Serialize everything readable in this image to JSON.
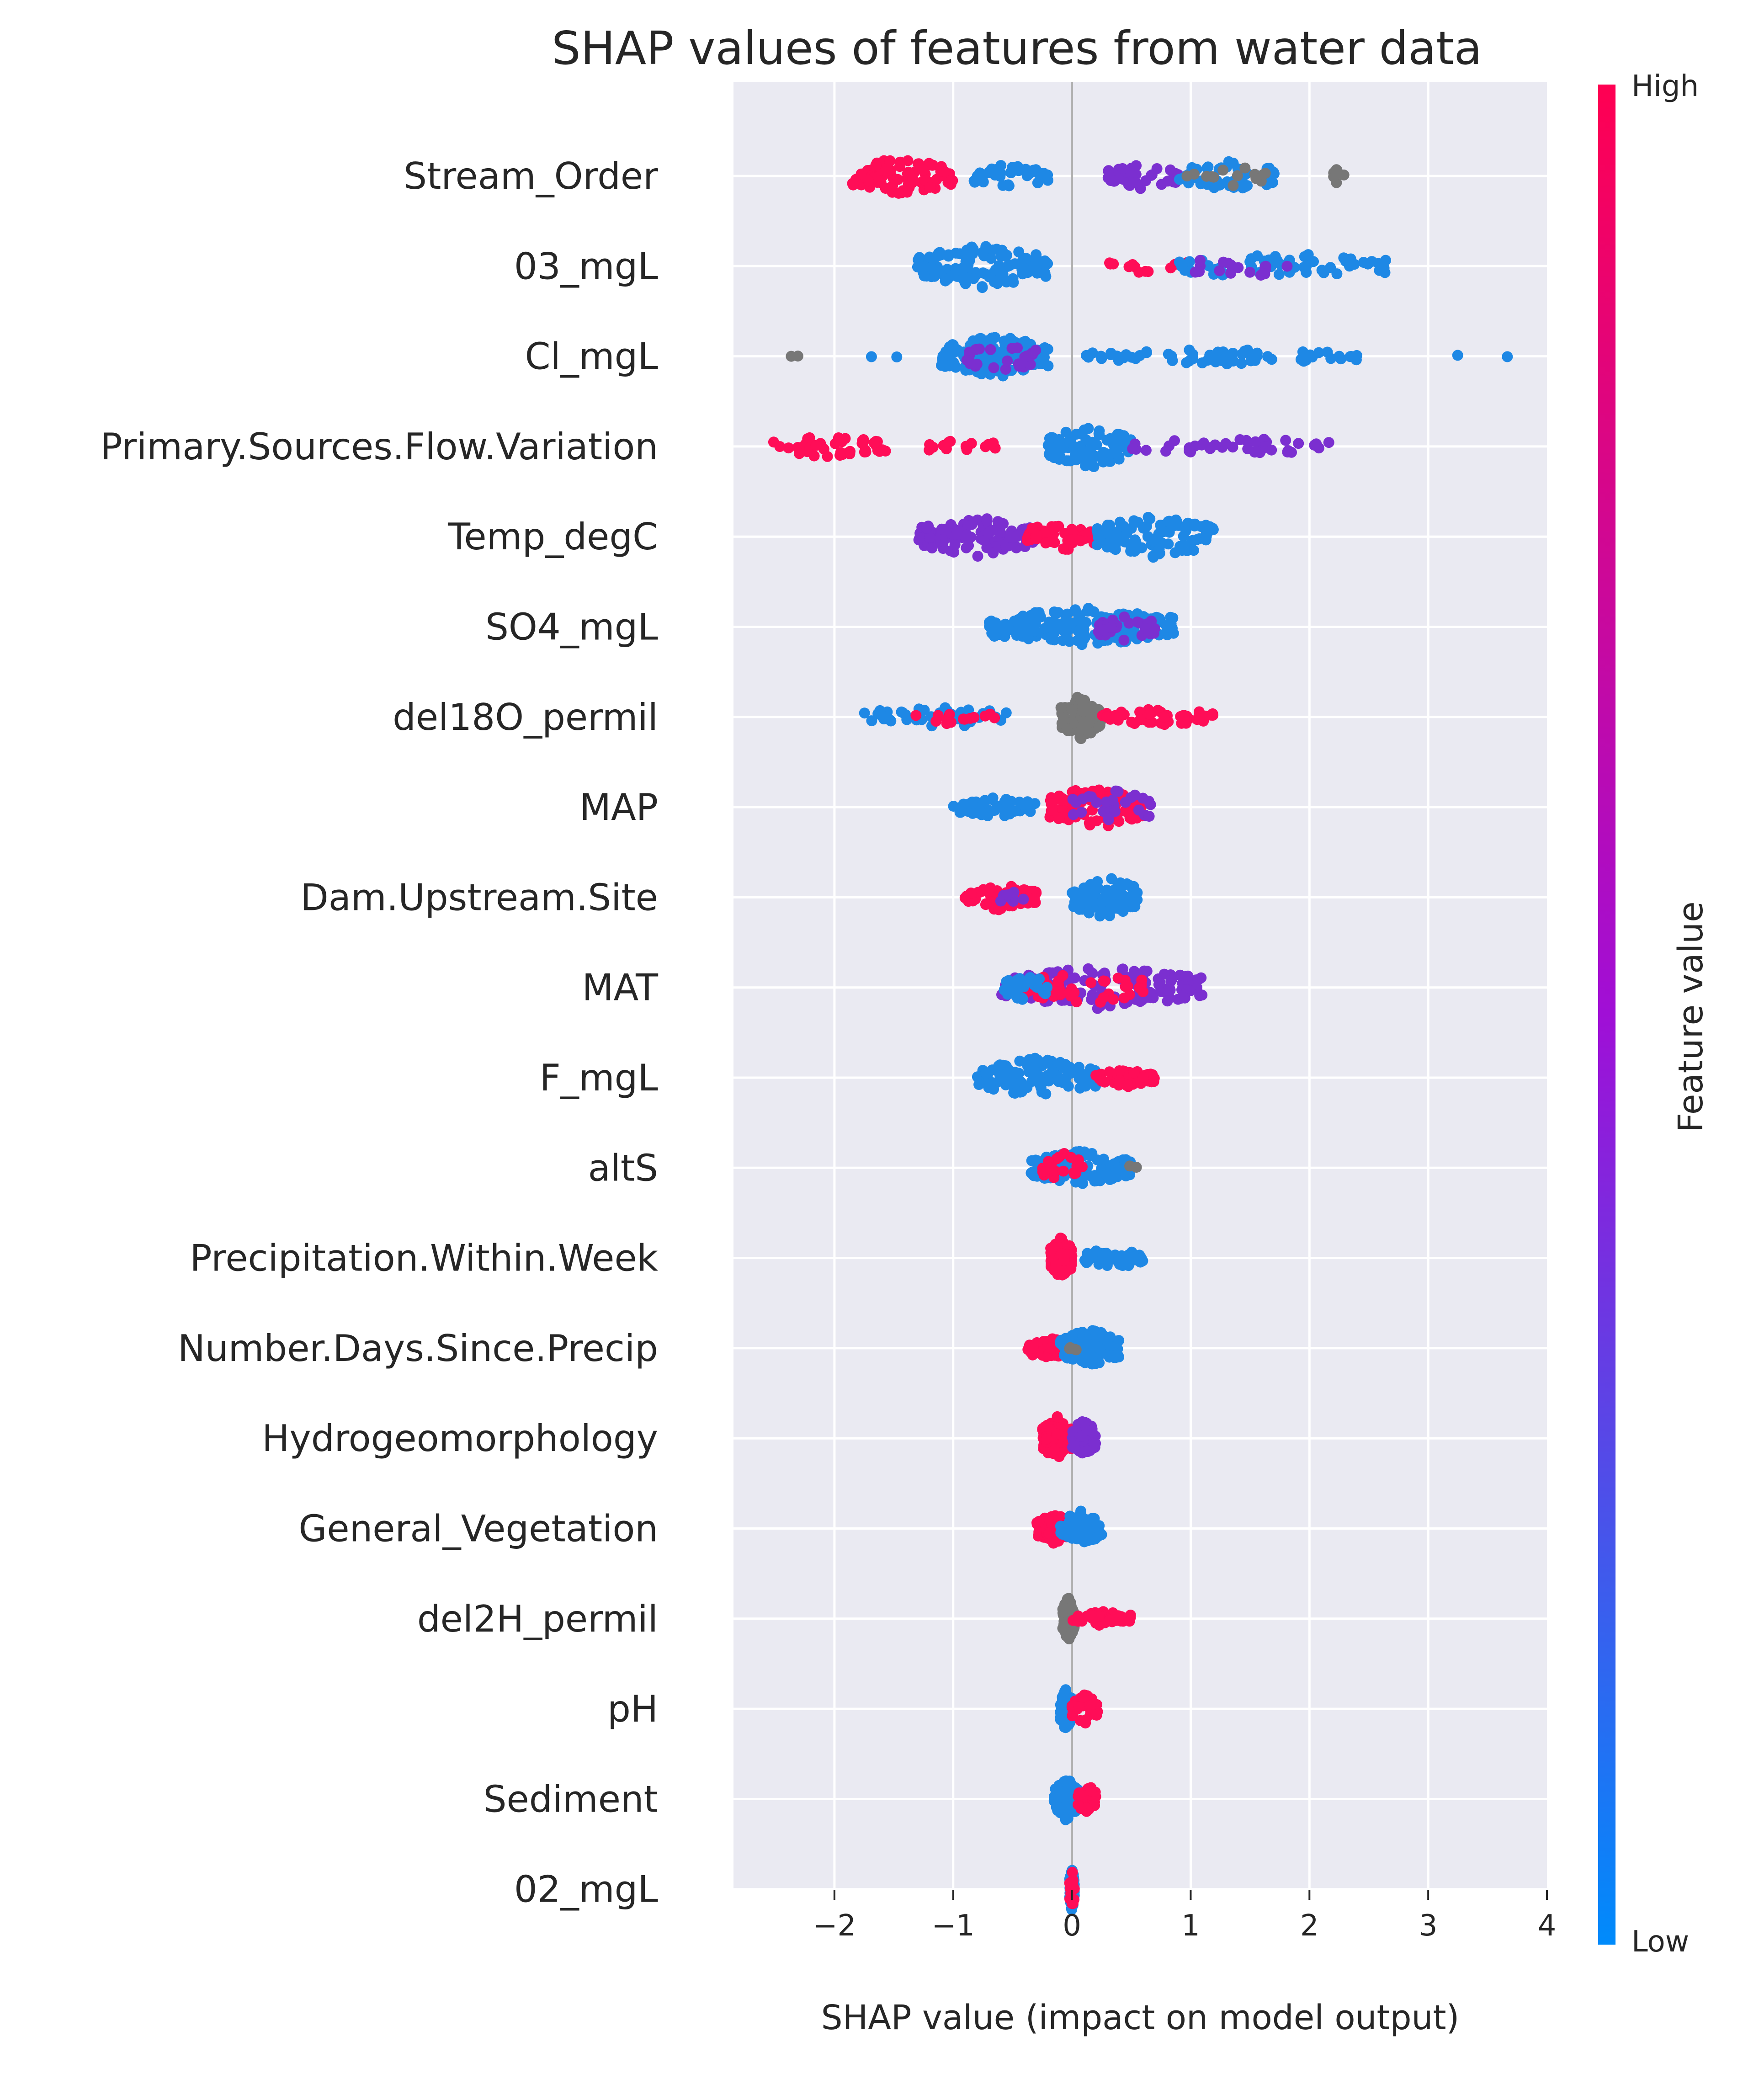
{
  "chart_data": {
    "type": "scatter",
    "title": "SHAP values of features from water data",
    "xlabel": "SHAP value (impact on model output)",
    "ylabel": "",
    "xlim": [
      -2.85,
      4
    ],
    "xticks": [
      -2,
      -1,
      0,
      1,
      2,
      3,
      4
    ],
    "xtick_labels": [
      "−2",
      "−1",
      "0",
      "1",
      "2",
      "3",
      "4"
    ],
    "grid": true,
    "colorbar": {
      "label": "Feature value",
      "high": "High",
      "low": "Low"
    },
    "colors": {
      "high": "#ff0d57",
      "low": "#1e88e5",
      "mid": "#7b2fd0",
      "missing": "#777777",
      "bg": "#eaeaf2",
      "grid": "#ffffff"
    },
    "features": [
      {
        "name": "Stream_Order",
        "groups": [
          {
            "range": [
              -1.85,
              -1.0
            ],
            "n": 90,
            "color": "high",
            "jitter": 0.9
          },
          {
            "range": [
              -0.85,
              -0.2
            ],
            "n": 45,
            "color": "low",
            "jitter": 0.6
          },
          {
            "range": [
              0.3,
              0.9
            ],
            "n": 40,
            "color": "mid",
            "jitter": 0.6
          },
          {
            "range": [
              0.9,
              1.75
            ],
            "n": 60,
            "color": "low",
            "jitter": 0.7
          },
          {
            "range": [
              0.9,
              1.7
            ],
            "n": 14,
            "color": "missing",
            "jitter": 0.5
          },
          {
            "range": [
              2.2,
              2.3
            ],
            "n": 8,
            "color": "missing",
            "jitter": 0.5
          }
        ]
      },
      {
        "name": "03_mgL",
        "groups": [
          {
            "range": [
              -1.3,
              -0.2
            ],
            "n": 130,
            "color": "low",
            "jitter": 1.0
          },
          {
            "range": [
              0.3,
              1.0
            ],
            "n": 12,
            "color": "high",
            "jitter": 0.4
          },
          {
            "range": [
              0.9,
              2.7
            ],
            "n": 55,
            "color": "low",
            "jitter": 0.6
          },
          {
            "range": [
              0.9,
              2.0
            ],
            "n": 18,
            "color": "mid",
            "jitter": 0.5
          }
        ]
      },
      {
        "name": "Cl_mgL",
        "groups": [
          {
            "range": [
              -1.1,
              -0.2
            ],
            "n": 150,
            "color": "low",
            "jitter": 1.0
          },
          {
            "range": [
              -0.9,
              -0.3
            ],
            "n": 25,
            "color": "mid",
            "jitter": 0.8
          },
          {
            "range": [
              0.1,
              2.5
            ],
            "n": 70,
            "color": "low",
            "jitter": 0.35
          },
          {
            "range": [
              2.9,
              3.7
            ],
            "n": 2,
            "color": "low",
            "jitter": 0.1
          },
          {
            "range": [
              -2.6,
              -2.3
            ],
            "n": 2,
            "color": "missing",
            "jitter": 0.1
          },
          {
            "range": [
              -2.0,
              -1.4
            ],
            "n": 2,
            "color": "low",
            "jitter": 0.1
          }
        ]
      },
      {
        "name": "Primary.Sources.Flow.Variation",
        "groups": [
          {
            "range": [
              -2.55,
              -1.55
            ],
            "n": 40,
            "color": "high",
            "jitter": 0.5
          },
          {
            "range": [
              -1.3,
              -0.6
            ],
            "n": 14,
            "color": "high",
            "jitter": 0.3
          },
          {
            "range": [
              -0.2,
              0.5
            ],
            "n": 90,
            "color": "low",
            "jitter": 1.0
          },
          {
            "range": [
              0.5,
              2.2
            ],
            "n": 40,
            "color": "mid",
            "jitter": 0.4
          }
        ]
      },
      {
        "name": "Temp_degC",
        "groups": [
          {
            "range": [
              -1.3,
              -0.3
            ],
            "n": 110,
            "color": "mid",
            "jitter": 0.9
          },
          {
            "range": [
              -0.4,
              0.2
            ],
            "n": 50,
            "color": "high",
            "jitter": 0.7
          },
          {
            "range": [
              0.2,
              1.2
            ],
            "n": 110,
            "color": "low",
            "jitter": 1.0
          }
        ]
      },
      {
        "name": "SO4_mgL",
        "groups": [
          {
            "range": [
              -0.7,
              0.9
            ],
            "n": 180,
            "color": "low",
            "jitter": 0.9
          },
          {
            "range": [
              0.2,
              0.7
            ],
            "n": 30,
            "color": "mid",
            "jitter": 0.7
          }
        ]
      },
      {
        "name": "del18O_permil",
        "groups": [
          {
            "range": [
              -1.8,
              -0.5
            ],
            "n": 40,
            "color": "low",
            "jitter": 0.5
          },
          {
            "range": [
              -1.4,
              -0.6
            ],
            "n": 14,
            "color": "high",
            "jitter": 0.4
          },
          {
            "range": [
              -0.1,
              0.25
            ],
            "n": 110,
            "color": "missing",
            "jitter": 1.0
          },
          {
            "range": [
              0.25,
              1.2
            ],
            "n": 50,
            "color": "high",
            "jitter": 0.4
          }
        ]
      },
      {
        "name": "MAP",
        "groups": [
          {
            "range": [
              -1.0,
              -0.3
            ],
            "n": 50,
            "color": "low",
            "jitter": 0.45
          },
          {
            "range": [
              -0.2,
              0.6
            ],
            "n": 110,
            "color": "high",
            "jitter": 1.0
          },
          {
            "range": [
              0.0,
              0.7
            ],
            "n": 30,
            "color": "mid",
            "jitter": 0.8
          }
        ]
      },
      {
        "name": "Dam.Upstream.Site",
        "groups": [
          {
            "range": [
              -0.9,
              -0.3
            ],
            "n": 70,
            "color": "high",
            "jitter": 0.6
          },
          {
            "range": [
              -0.6,
              -0.4
            ],
            "n": 10,
            "color": "mid",
            "jitter": 0.4
          },
          {
            "range": [
              0.0,
              0.55
            ],
            "n": 90,
            "color": "low",
            "jitter": 1.0
          }
        ]
      },
      {
        "name": "MAT",
        "groups": [
          {
            "range": [
              -0.6,
              1.1
            ],
            "n": 160,
            "color": "mid",
            "jitter": 1.0
          },
          {
            "range": [
              -0.4,
              0.6
            ],
            "n": 50,
            "color": "high",
            "jitter": 0.8
          },
          {
            "range": [
              -0.6,
              -0.2
            ],
            "n": 25,
            "color": "low",
            "jitter": 0.6
          }
        ]
      },
      {
        "name": "F_mgL",
        "groups": [
          {
            "range": [
              -0.8,
              0.2
            ],
            "n": 110,
            "color": "low",
            "jitter": 0.9
          },
          {
            "range": [
              0.2,
              0.7
            ],
            "n": 60,
            "color": "high",
            "jitter": 0.45
          }
        ]
      },
      {
        "name": "altS",
        "groups": [
          {
            "range": [
              -0.35,
              0.5
            ],
            "n": 120,
            "color": "low",
            "jitter": 0.8
          },
          {
            "range": [
              -0.25,
              0.1
            ],
            "n": 20,
            "color": "high",
            "jitter": 0.8
          },
          {
            "range": [
              0.45,
              0.55
            ],
            "n": 2,
            "color": "missing",
            "jitter": 0.1
          }
        ]
      },
      {
        "name": "Precipitation.Within.Week",
        "groups": [
          {
            "range": [
              -0.18,
              0.0
            ],
            "n": 120,
            "color": "high",
            "jitter": 1.0
          },
          {
            "range": [
              0.1,
              0.6
            ],
            "n": 40,
            "color": "low",
            "jitter": 0.5
          }
        ]
      },
      {
        "name": "Number.Days.Since.Precip",
        "groups": [
          {
            "range": [
              -0.4,
              0.0
            ],
            "n": 40,
            "color": "high",
            "jitter": 0.5
          },
          {
            "range": [
              -0.1,
              0.4
            ],
            "n": 110,
            "color": "low",
            "jitter": 0.9
          },
          {
            "range": [
              -0.05,
              0.05
            ],
            "n": 4,
            "color": "missing",
            "jitter": 0.2
          }
        ]
      },
      {
        "name": "Hydrogeomorphology",
        "groups": [
          {
            "range": [
              -0.25,
              0.0
            ],
            "n": 120,
            "color": "high",
            "jitter": 1.0
          },
          {
            "range": [
              0.0,
              0.2
            ],
            "n": 60,
            "color": "mid",
            "jitter": 0.9
          }
        ]
      },
      {
        "name": "General_Vegetation",
        "groups": [
          {
            "range": [
              -0.3,
              0.0
            ],
            "n": 70,
            "color": "high",
            "jitter": 0.7
          },
          {
            "range": [
              -0.1,
              0.25
            ],
            "n": 70,
            "color": "low",
            "jitter": 0.8
          }
        ]
      },
      {
        "name": "del2H_permil",
        "groups": [
          {
            "range": [
              -0.08,
              0.02
            ],
            "n": 90,
            "color": "missing",
            "jitter": 1.0
          },
          {
            "range": [
              0.0,
              0.5
            ],
            "n": 45,
            "color": "high",
            "jitter": 0.35
          }
        ]
      },
      {
        "name": "pH",
        "groups": [
          {
            "range": [
              -0.1,
              0.0
            ],
            "n": 80,
            "color": "low",
            "jitter": 1.0
          },
          {
            "range": [
              0.0,
              0.22
            ],
            "n": 40,
            "color": "high",
            "jitter": 0.7
          }
        ]
      },
      {
        "name": "Sediment",
        "groups": [
          {
            "range": [
              -0.15,
              0.05
            ],
            "n": 90,
            "color": "low",
            "jitter": 1.0
          },
          {
            "range": [
              0.05,
              0.2
            ],
            "n": 40,
            "color": "high",
            "jitter": 0.7
          }
        ]
      },
      {
        "name": "02_mgL",
        "groups": [
          {
            "range": [
              -0.02,
              0.02
            ],
            "n": 60,
            "color": "low",
            "jitter": 1.0
          },
          {
            "range": [
              -0.02,
              0.02
            ],
            "n": 15,
            "color": "high",
            "jitter": 0.9
          }
        ]
      }
    ]
  }
}
